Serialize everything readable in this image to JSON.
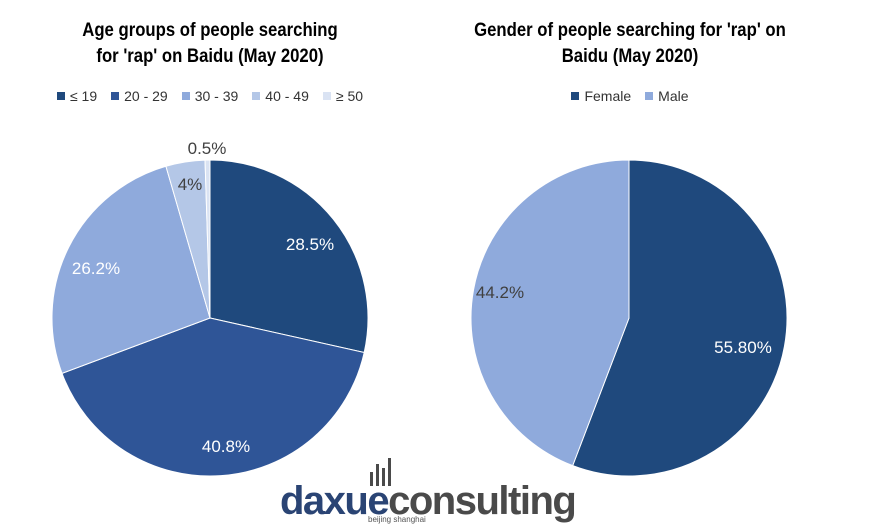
{
  "chart_data": [
    {
      "type": "pie",
      "title": "Age groups of people searching for 'rap' on Baidu (May 2020)",
      "title_lines": [
        "Age groups of people searching",
        "for 'rap' on Baidu (May 2020)"
      ],
      "legend_position": "top",
      "slices": [
        {
          "name": "≤ 19",
          "value": 28.5,
          "label": "28.5%",
          "color": "#1f497d",
          "label_color": "#ffffff"
        },
        {
          "name": "20 - 29",
          "value": 40.8,
          "label": "40.8%",
          "color": "#2f5597",
          "label_color": "#ffffff"
        },
        {
          "name": "30 - 39",
          "value": 26.2,
          "label": "26.2%",
          "color": "#8faadc",
          "label_color": "#ffffff"
        },
        {
          "name": "40 - 49",
          "value": 4.0,
          "label": "4%",
          "color": "#b4c7e7",
          "label_color": "#404040"
        },
        {
          "name": "≥ 50",
          "value": 0.5,
          "label": "0.5%",
          "color": "#dae3f3",
          "label_color": "#404040"
        }
      ]
    },
    {
      "type": "pie",
      "title": "Gender of people searching for 'rap' on Baidu (May 2020)",
      "title_lines": [
        "Gender of people searching for 'rap' on",
        "Baidu (May 2020)"
      ],
      "legend_position": "top",
      "slices": [
        {
          "name": "Female",
          "value": 55.8,
          "label": "55.80%",
          "color": "#1f497d",
          "label_color": "#ffffff"
        },
        {
          "name": "Male",
          "value": 44.2,
          "label": "44.2%",
          "color": "#8faadc",
          "label_color": "#404040"
        }
      ]
    }
  ],
  "watermark": {
    "text_part1": "daxue",
    "text_part2": "consulting",
    "subtitle": "beijing shanghai",
    "colors": {
      "part1": "#2a4474",
      "part2": "#4a4a4a"
    }
  }
}
